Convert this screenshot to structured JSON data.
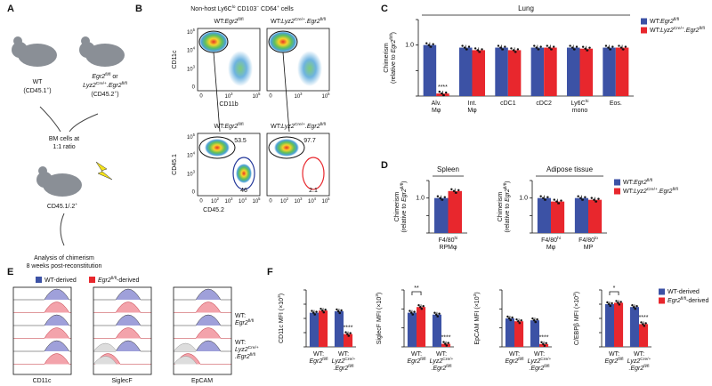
{
  "panels": {
    "letters": [
      "A",
      "B",
      "C",
      "D",
      "E",
      "F"
    ],
    "A": {
      "wt": "WT",
      "wt_marker": [
        {
          "t": "(CD45.1"
        },
        {
          "t": "+",
          "sup": true
        },
        {
          "t": ")"
        }
      ],
      "egr_or": [
        {
          "t": "Egr2",
          "i": true
        },
        {
          "t": "fl/fl",
          "sup": true
        },
        {
          "t": " or"
        }
      ],
      "lyz": [
        {
          "t": "Lyz2",
          "i": true
        },
        {
          "t": "Cre/+",
          "sup": true
        },
        {
          "t": ".Egr2",
          "i": true
        },
        {
          "t": "fl/fl",
          "sup": true
        }
      ],
      "ko_marker": [
        {
          "t": "(CD45.2"
        },
        {
          "t": "+",
          "sup": true
        },
        {
          "t": ")"
        }
      ],
      "bm": [
        "BM cells at",
        "1:1 ratio"
      ],
      "recipient": [
        {
          "t": "CD45.1/.2"
        },
        {
          "t": "+",
          "sup": true
        }
      ],
      "analysis": [
        "Analysis of chimerism",
        "8 weeks post-reconstitution"
      ]
    },
    "B": {
      "title": [
        {
          "t": "Non-host Ly6C"
        },
        {
          "t": "lo",
          "sup": true
        },
        {
          "t": " CD103"
        },
        {
          "t": "−",
          "sup": true
        },
        {
          "t": " CD64"
        },
        {
          "t": "+",
          "sup": true
        },
        {
          "t": " cells"
        }
      ],
      "plots": [
        [
          {
            "t": "WT:"
          },
          {
            "t": "Egr2",
            "i": true
          },
          {
            "t": "fl/fl",
            "sup": true
          }
        ],
        [
          {
            "t": "WT:"
          },
          {
            "t": "Lyz2",
            "i": true
          },
          {
            "t": "Cre/+",
            "sup": true
          },
          {
            "t": ".Egr2",
            "i": true
          },
          {
            "t": "fl/fl",
            "sup": true
          }
        ]
      ],
      "top_y": "CD11c",
      "top_x": "CD11b",
      "bottom_y": "CD45.1",
      "bottom_x": "CD45.2",
      "yticks": [
        [
          {
            "t": "10"
          },
          {
            "t": "5",
            "sup": true
          }
        ],
        [
          {
            "t": "10"
          },
          {
            "t": "4",
            "sup": true
          }
        ],
        [
          {
            "t": "10"
          },
          {
            "t": "3",
            "sup": true
          }
        ],
        "0"
      ],
      "xticks_top": [
        "0",
        [
          {
            "t": "10"
          },
          {
            "t": "3",
            "sup": true
          }
        ],
        [
          {
            "t": "10"
          },
          {
            "t": "5",
            "sup": true
          }
        ]
      ],
      "xticks_bottom": [
        "0",
        [
          {
            "t": "10"
          },
          {
            "t": "2",
            "sup": true
          }
        ],
        [
          {
            "t": "10"
          },
          {
            "t": "3",
            "sup": true
          }
        ],
        [
          {
            "t": "10"
          },
          {
            "t": "4",
            "sup": true
          }
        ],
        [
          {
            "t": "10"
          },
          {
            "t": "5",
            "sup": true
          }
        ]
      ],
      "gates": [
        [
          "53.5",
          "46"
        ],
        [
          "97.7",
          "2.1"
        ]
      ]
    },
    "E": {
      "legend": [
        "WT-derived",
        [
          {
            "t": "Egr2",
            "i": true
          },
          {
            "t": "fl/fl",
            "sup": true
          },
          {
            "t": "-derived"
          }
        ]
      ],
      "rows": [
        [
          {
            "t": "WT:"
          },
          {
            "t": "Egr2",
            "i": true,
            "br": true
          },
          {
            "t": "fl/fl",
            "sup": true
          }
        ],
        [
          {
            "t": "WT:"
          },
          {
            "t": "Lyz2",
            "i": true,
            "br": true
          },
          {
            "t": "Cre/+",
            "sup": true
          },
          {
            "t": ".Egr2",
            "i": true,
            "br": true
          },
          {
            "t": "fl/fl",
            "sup": true
          }
        ]
      ],
      "markers": [
        "CD11c",
        "SiglecF",
        "EpCAM"
      ]
    }
  },
  "chart_data": [
    {
      "type": "bar",
      "title": "Lung",
      "ylabel": [
        {
          "t": "Chimerism"
        },
        {
          "t": "(relative to ",
          "br": true
        },
        {
          "t": "Egr2",
          "i": true
        },
        {
          "t": "fl/fl",
          "sup": true
        },
        {
          "t": ")"
        }
      ],
      "categories": [
        [
          {
            "t": "Alv."
          },
          {
            "t": "Mφ",
            "br": true
          }
        ],
        [
          {
            "t": "Int."
          },
          {
            "t": "Mφ",
            "br": true
          }
        ],
        "cDC1",
        "cDC2",
        [
          {
            "t": "Ly6C"
          },
          {
            "t": "hi",
            "sup": true
          },
          {
            "t": "mono",
            "br": true
          }
        ],
        "Eos."
      ],
      "series": [
        {
          "name": [
            {
              "t": "WT:"
            },
            {
              "t": "Egr2",
              "i": true
            },
            {
              "t": "fl/fl",
              "sup": true
            }
          ],
          "color": "#3c52a5",
          "values": [
            1.0,
            0.95,
            0.95,
            0.95,
            0.95,
            0.95
          ],
          "sig": [
            null,
            null,
            null,
            null,
            null,
            null
          ]
        },
        {
          "name": [
            {
              "t": "WT:"
            },
            {
              "t": "Lyz2",
              "i": true
            },
            {
              "t": "Cre/+",
              "sup": true
            },
            {
              "t": ".Egr2",
              "i": true
            },
            {
              "t": "fl/fl",
              "sup": true
            }
          ],
          "color": "#e8272d",
          "values": [
            0.05,
            0.9,
            0.9,
            0.95,
            0.93,
            0.95
          ],
          "sig": [
            "****",
            null,
            null,
            null,
            null,
            null
          ]
        }
      ],
      "ylim": [
        0,
        1.5
      ],
      "yticks": [
        0,
        0.5,
        {
          "value": 1,
          "label": "1.0"
        },
        1.5
      ],
      "legend": true
    },
    {
      "type": "bar",
      "title": "Spleen",
      "ylabel": [
        {
          "t": "Chimerism"
        },
        {
          "t": "(relative to ",
          "br": true
        },
        {
          "t": "Egr2",
          "i": true
        },
        {
          "t": "fl/fl",
          "sup": true
        },
        {
          "t": ")"
        }
      ],
      "categories": [
        [
          {
            "t": "F4/80"
          },
          {
            "t": "hi",
            "sup": true
          },
          {
            "t": "RPMφ",
            "br": true
          }
        ]
      ],
      "series": [
        {
          "name": [
            {
              "t": "WT:"
            },
            {
              "t": "Egr2",
              "i": true
            },
            {
              "t": "fl/fl",
              "sup": true
            }
          ],
          "color": "#3c52a5",
          "values": [
            1.0
          ]
        },
        {
          "name": [
            {
              "t": "WT:"
            },
            {
              "t": "Lyz2",
              "i": true
            },
            {
              "t": "Cre/+",
              "sup": true
            },
            {
              "t": ".Egr2",
              "i": true
            },
            {
              "t": "fl/fl",
              "sup": true
            }
          ],
          "color": "#e8272d",
          "values": [
            1.2
          ]
        }
      ],
      "ylim": [
        0,
        1.5
      ],
      "yticks": [
        0,
        0.5,
        {
          "value": 1,
          "label": "1.0"
        },
        1.5
      ],
      "legend": false
    },
    {
      "type": "bar",
      "title": "Adipose tissue",
      "ylabel": [
        {
          "t": "Chimerism"
        },
        {
          "t": "(relative to ",
          "br": true
        },
        {
          "t": "Egr2",
          "i": true
        },
        {
          "t": "fl/fl",
          "sup": true
        },
        {
          "t": ")"
        }
      ],
      "categories": [
        [
          {
            "t": "F4/80"
          },
          {
            "t": "hi",
            "sup": true
          },
          {
            "t": "Mφ",
            "br": true
          }
        ],
        [
          {
            "t": "F4/80"
          },
          {
            "t": "lo",
            "sup": true
          },
          {
            "t": "MP",
            "br": true
          }
        ]
      ],
      "series": [
        {
          "name": [
            {
              "t": "WT:"
            },
            {
              "t": "Egr2",
              "i": true
            },
            {
              "t": "fl/fl",
              "sup": true
            }
          ],
          "color": "#3c52a5",
          "values": [
            1.0,
            1.0
          ]
        },
        {
          "name": [
            {
              "t": "WT:"
            },
            {
              "t": "Lyz2",
              "i": true
            },
            {
              "t": "Cre/+",
              "sup": true
            },
            {
              "t": ".Egr2",
              "i": true
            },
            {
              "t": "fl/fl",
              "sup": true
            }
          ],
          "color": "#e8272d",
          "values": [
            0.9,
            0.95
          ]
        }
      ],
      "ylim": [
        0,
        1.5
      ],
      "yticks": [
        0,
        0.5,
        {
          "value": 1,
          "label": "1.0"
        },
        1.5
      ],
      "legend": true
    },
    {
      "type": "bar",
      "ylabel": [
        {
          "t": "CD11c MFI (×10"
        },
        {
          "t": "3",
          "sup": true
        },
        {
          "t": ")"
        }
      ],
      "categories": [
        [
          {
            "t": "WT:"
          },
          {
            "t": "Egr2",
            "i": true,
            "br": true
          },
          {
            "t": "fl/fl",
            "sup": true
          }
        ],
        [
          {
            "t": "WT:"
          },
          {
            "t": "Lyz2",
            "i": true,
            "br": true
          },
          {
            "t": "Cre/+",
            "sup": true
          },
          {
            "t": ".Egr2",
            "i": true,
            "br": true
          },
          {
            "t": "fl/fl",
            "sup": true
          }
        ]
      ],
      "series": [
        {
          "name": "WT-derived",
          "color": "#3c52a5",
          "values": [
            4.8,
            5.0
          ],
          "sig": [
            null,
            null
          ]
        },
        {
          "name": [
            {
              "t": "Egr2",
              "i": true
            },
            {
              "t": "fl/fl",
              "sup": true
            },
            {
              "t": "-derived"
            }
          ],
          "color": "#e8272d",
          "values": [
            5.1,
            1.8
          ],
          "sig": [
            null,
            "****"
          ]
        }
      ],
      "ylim": [
        0,
        8
      ],
      "yticks": [
        0,
        2,
        4,
        6,
        8
      ],
      "legend": false
    },
    {
      "type": "bar",
      "ylabel": [
        {
          "t": "SiglecF MFI (×10"
        },
        {
          "t": "3",
          "sup": true
        },
        {
          "t": ")"
        }
      ],
      "categories": [
        [
          {
            "t": "WT:"
          },
          {
            "t": "Egr2",
            "i": true,
            "br": true
          },
          {
            "t": "fl/fl",
            "sup": true
          }
        ],
        [
          {
            "t": "WT:"
          },
          {
            "t": "Lyz2",
            "i": true,
            "br": true
          },
          {
            "t": "Cre/+",
            "sup": true
          },
          {
            "t": ".Egr2",
            "i": true,
            "br": true
          },
          {
            "t": "fl/fl",
            "sup": true
          }
        ]
      ],
      "series": [
        {
          "name": "WT-derived",
          "color": "#3c52a5",
          "values": [
            9.0,
            8.5
          ],
          "sig": [
            null,
            null
          ]
        },
        {
          "name": [
            {
              "t": "Egr2",
              "i": true
            },
            {
              "t": "fl/fl",
              "sup": true
            },
            {
              "t": "-derived"
            }
          ],
          "color": "#e8272d",
          "values": [
            10.5,
            0.8
          ],
          "sig": [
            null,
            "****"
          ]
        }
      ],
      "ylim": [
        0,
        15
      ],
      "yticks": [
        0,
        5,
        10,
        15
      ],
      "brackets": [
        "**"
      ],
      "legend": false
    },
    {
      "type": "bar",
      "ylabel": [
        {
          "t": "EpCAM MFI (×10"
        },
        {
          "t": "3",
          "sup": true
        },
        {
          "t": ")"
        }
      ],
      "categories": [
        [
          {
            "t": "WT:"
          },
          {
            "t": "Egr2",
            "i": true,
            "br": true
          },
          {
            "t": "fl/fl",
            "sup": true
          }
        ],
        [
          {
            "t": "WT:"
          },
          {
            "t": "Lyz2",
            "i": true,
            "br": true
          },
          {
            "t": "Cre/+",
            "sup": true
          },
          {
            "t": ".Egr2",
            "i": true,
            "br": true
          },
          {
            "t": "fl/fl",
            "sup": true
          }
        ]
      ],
      "series": [
        {
          "name": "WT-derived",
          "color": "#3c52a5",
          "values": [
            3.0,
            2.8
          ],
          "sig": [
            null,
            null
          ]
        },
        {
          "name": [
            {
              "t": "Egr2",
              "i": true
            },
            {
              "t": "fl/fl",
              "sup": true
            },
            {
              "t": "-derived"
            }
          ],
          "color": "#e8272d",
          "values": [
            2.7,
            0.3
          ],
          "sig": [
            null,
            "****"
          ]
        }
      ],
      "ylim": [
        0,
        6
      ],
      "yticks": [
        0,
        2,
        4,
        6
      ],
      "legend": false
    },
    {
      "type": "bar",
      "ylabel": [
        {
          "t": "C/EBPβ MFI (×10"
        },
        {
          "t": "3",
          "sup": true
        },
        {
          "t": ")"
        }
      ],
      "categories": [
        [
          {
            "t": "WT:"
          },
          {
            "t": "Egr2",
            "i": true,
            "br": true
          },
          {
            "t": "fl/fl",
            "sup": true
          }
        ],
        [
          {
            "t": "WT:"
          },
          {
            "t": "Lyz2",
            "i": true,
            "br": true
          },
          {
            "t": "Cre/+",
            "sup": true
          },
          {
            "t": ".Egr2",
            "i": true,
            "br": true
          },
          {
            "t": "fl/fl",
            "sup": true
          }
        ]
      ],
      "series": [
        {
          "name": "WT-derived",
          "color": "#3c52a5",
          "values": [
            3.0,
            2.8
          ],
          "sig": [
            null,
            null
          ]
        },
        {
          "name": [
            {
              "t": "Egr2",
              "i": true
            },
            {
              "t": "fl/fl",
              "sup": true
            },
            {
              "t": "-derived"
            }
          ],
          "color": "#e8272d",
          "values": [
            3.1,
            1.6
          ],
          "sig": [
            null,
            "****"
          ]
        }
      ],
      "ylim": [
        0,
        4
      ],
      "yticks": [
        0,
        1,
        2,
        3,
        4
      ],
      "brackets": [
        "*"
      ],
      "legend": true
    }
  ]
}
